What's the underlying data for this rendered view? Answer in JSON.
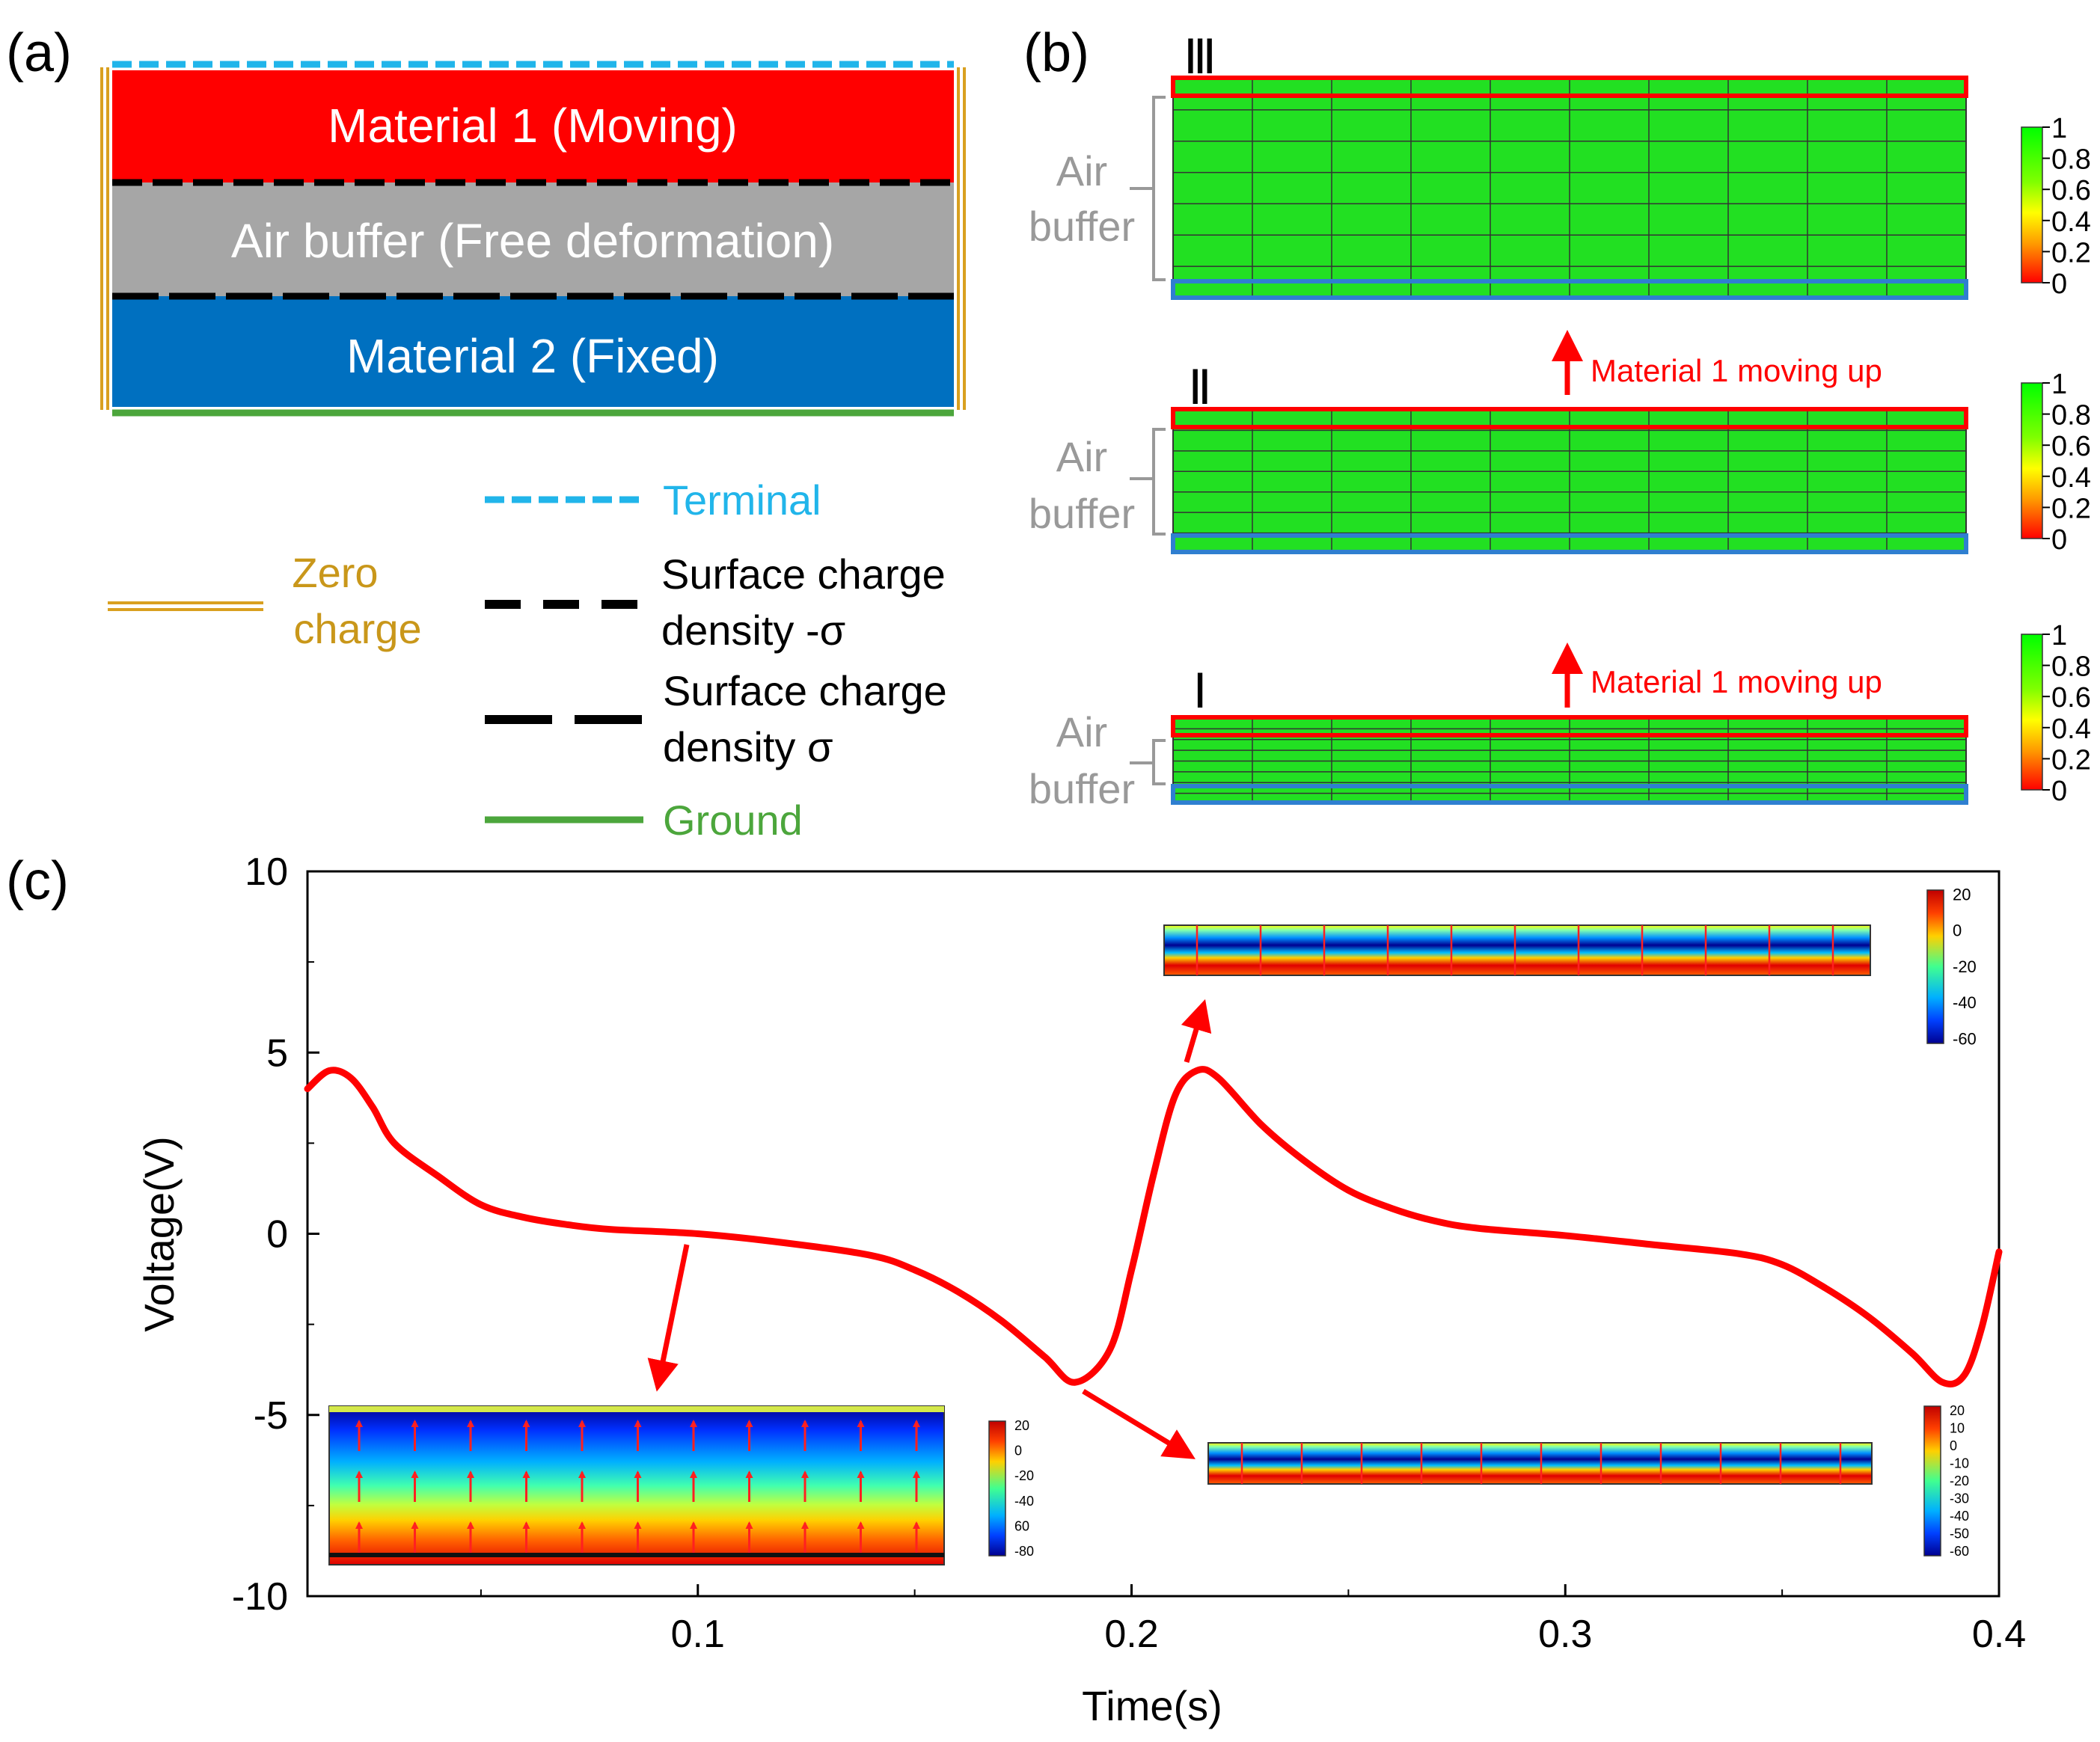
{
  "panel_a": {
    "label": "(a)",
    "layers": [
      {
        "text": "Material 1 (Moving)",
        "color": "#ff0000"
      },
      {
        "text": "Air buffer (Free deformation)",
        "color": "#a6a6a6"
      },
      {
        "text": "Material 2 (Fixed)",
        "color": "#0070c0"
      }
    ],
    "legend": {
      "terminal": "Terminal",
      "zero_charge_1": "Zero",
      "zero_charge_2": "charge",
      "neg_sigma_1": "Surface charge",
      "neg_sigma_2": "density -σ",
      "pos_sigma_1": "Surface charge",
      "pos_sigma_2": "density σ",
      "ground": "Ground"
    },
    "colors": {
      "terminal": "#21b5ea",
      "zero_charge": "#d9a020",
      "ground": "#4ca63c",
      "label_gold": "#c9971a"
    }
  },
  "panel_b": {
    "label": "(b)",
    "states": [
      {
        "roman": "Ⅲ",
        "air_1": "Air",
        "air_2": "buffer",
        "arrow_text": ""
      },
      {
        "roman": "Ⅱ",
        "air_1": "Air",
        "air_2": "buffer",
        "arrow_text": "Material 1 moving up"
      },
      {
        "roman": "Ⅰ",
        "air_1": "Air",
        "air_2": "buffer",
        "arrow_text": "Material 1 moving up"
      }
    ],
    "colorbar_ticks": [
      "1",
      "0.8",
      "0.6",
      "0.4",
      "0.2",
      "0"
    ]
  },
  "panel_c": {
    "label": "(c)",
    "inset_ticks_large": [
      "20",
      "0",
      "-20",
      "-40",
      "-60"
    ],
    "inset_ticks_left": [
      "20",
      "0",
      "-20",
      "-40",
      "60",
      "-80"
    ],
    "inset_ticks_right": [
      "20",
      "10",
      "0",
      "-10",
      "-20",
      "-30",
      "-40",
      "-50",
      "-60"
    ]
  },
  "chart_data": {
    "type": "line",
    "xlabel": "Time(s)",
    "ylabel": "Voltage(V)",
    "xlim": [
      0.01,
      0.4
    ],
    "ylim": [
      -10,
      10
    ],
    "xticks": [
      "0.1",
      "0.2",
      "0.3",
      "0.4"
    ],
    "yticks": [
      "10",
      "5",
      "0",
      "-5",
      "-10"
    ],
    "series": [
      {
        "color": "#ff0000",
        "x": [
          0.01,
          0.015,
          0.02,
          0.025,
          0.03,
          0.04,
          0.05,
          0.06,
          0.07,
          0.08,
          0.1,
          0.12,
          0.14,
          0.15,
          0.16,
          0.17,
          0.18,
          0.187,
          0.195,
          0.2,
          0.205,
          0.21,
          0.215,
          0.22,
          0.23,
          0.24,
          0.25,
          0.26,
          0.27,
          0.28,
          0.3,
          0.32,
          0.34,
          0.35,
          0.36,
          0.37,
          0.38,
          0.387,
          0.392,
          0.396,
          0.4
        ],
        "y": [
          4.0,
          4.5,
          4.3,
          3.5,
          2.5,
          1.6,
          0.8,
          0.45,
          0.25,
          0.12,
          0.0,
          -0.25,
          -0.6,
          -1.0,
          -1.6,
          -2.4,
          -3.4,
          -4.1,
          -3.2,
          -1.0,
          1.6,
          3.8,
          4.5,
          4.3,
          3.0,
          2.0,
          1.2,
          0.7,
          0.35,
          0.15,
          -0.05,
          -0.3,
          -0.55,
          -0.85,
          -1.5,
          -2.3,
          -3.3,
          -4.1,
          -3.9,
          -2.6,
          -0.5
        ]
      }
    ]
  }
}
